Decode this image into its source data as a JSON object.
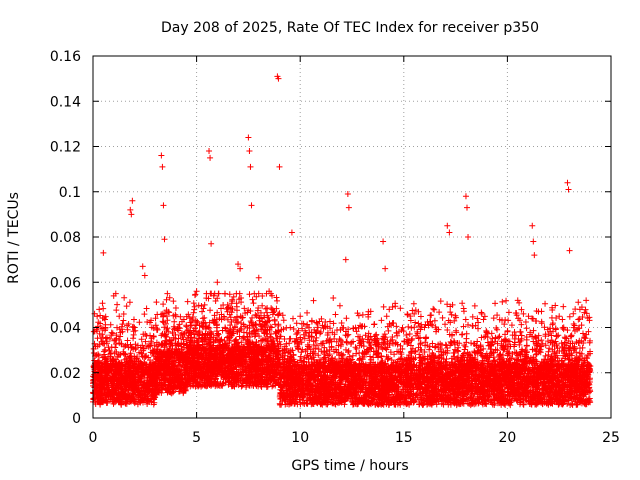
{
  "chart_data": {
    "type": "scatter",
    "title": "Day 208 of 2025, Rate Of TEC Index for receiver p350",
    "xlabel": "GPS time / hours",
    "ylabel": "ROTI / TECUs",
    "xlim": [
      0,
      25
    ],
    "ylim": [
      0,
      0.16
    ],
    "x_ticks": [
      0,
      5,
      10,
      15,
      20,
      25
    ],
    "y_ticks": [
      0,
      0.02,
      0.04,
      0.06,
      0.08,
      0.1,
      0.12,
      0.14,
      0.16
    ],
    "x_tick_labels": [
      "0",
      "5",
      "10",
      "15",
      "20",
      "25"
    ],
    "y_tick_labels": [
      "0",
      "0.02",
      "0.04",
      "0.06",
      "0.08",
      "0.1",
      "0.12",
      "0.14",
      "0.16"
    ],
    "grid": true,
    "marker": "+",
    "color": "#ff0000",
    "series": [
      {
        "name": "ROTI",
        "x": [
          0.5,
          1.0,
          1.1,
          1.8,
          1.85,
          1.9,
          2.4,
          2.5,
          3.3,
          3.35,
          3.4,
          3.45,
          5.6,
          5.65,
          5.7,
          7.0,
          7.1,
          7.5,
          7.55,
          7.6,
          7.65,
          8.9,
          8.95,
          9.0,
          9.6,
          12.3,
          12.35,
          12.2,
          14.0,
          14.1,
          17.1,
          17.2,
          18.0,
          18.05,
          18.1,
          21.2,
          21.25,
          21.3,
          22.9,
          22.95,
          23.0,
          23.8,
          0.2,
          0.3,
          2.0,
          4.0,
          4.5,
          5.0,
          6.0,
          6.5,
          8.0,
          8.5,
          10.0,
          11.0,
          12.0,
          13.0,
          14.5,
          15.5,
          16.0,
          16.5,
          19.0,
          19.5,
          20.5,
          21.5,
          22.5,
          23.5
        ],
        "y": [
          0.073,
          0.054,
          0.055,
          0.092,
          0.09,
          0.096,
          0.067,
          0.063,
          0.116,
          0.111,
          0.094,
          0.079,
          0.118,
          0.115,
          0.077,
          0.068,
          0.066,
          0.124,
          0.118,
          0.111,
          0.094,
          0.151,
          0.15,
          0.111,
          0.082,
          0.099,
          0.093,
          0.07,
          0.078,
          0.066,
          0.085,
          0.082,
          0.098,
          0.093,
          0.08,
          0.085,
          0.078,
          0.072,
          0.104,
          0.101,
          0.074,
          0.052,
          0.045,
          0.048,
          0.04,
          0.045,
          0.041,
          0.056,
          0.06,
          0.05,
          0.062,
          0.056,
          0.045,
          0.038,
          0.042,
          0.035,
          0.042,
          0.046,
          0.04,
          0.043,
          0.038,
          0.039,
          0.052,
          0.047,
          0.045,
          0.048
        ]
      }
    ]
  }
}
